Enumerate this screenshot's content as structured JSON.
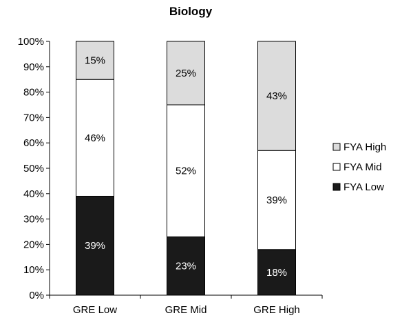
{
  "chart_data": {
    "type": "bar",
    "stacked": true,
    "title": "Biology",
    "xlabel": "",
    "ylabel": "",
    "categories": [
      "GRE Low",
      "GRE Mid",
      "GRE High"
    ],
    "series": [
      {
        "name": "FYA Low",
        "values": [
          39,
          23,
          18
        ],
        "labels": [
          "39%",
          "23%",
          "18%"
        ],
        "color": "#1a1a1a",
        "label_color": "#ffffff"
      },
      {
        "name": "FYA Mid",
        "values": [
          46,
          52,
          39
        ],
        "labels": [
          "46%",
          "52%",
          "39%"
        ],
        "color": "#ffffff",
        "label_color": "#000000"
      },
      {
        "name": "FYA High",
        "values": [
          15,
          25,
          43
        ],
        "labels": [
          "15%",
          "25%",
          "43%"
        ],
        "color": "#dcdcdc",
        "label_color": "#000000"
      }
    ],
    "ylim": [
      0,
      100
    ],
    "yticks": [
      "0%",
      "10%",
      "20%",
      "30%",
      "40%",
      "50%",
      "60%",
      "70%",
      "80%",
      "90%",
      "100%"
    ],
    "legend_position": "right",
    "legend_order": [
      "FYA High",
      "FYA Mid",
      "FYA Low"
    ],
    "grid": false
  }
}
